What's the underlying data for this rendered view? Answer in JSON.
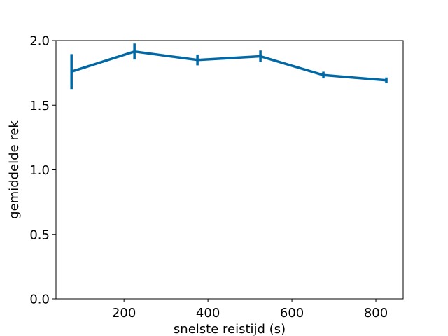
{
  "chart_data": {
    "type": "line",
    "title": "",
    "xlabel": "snelste reistijd (s)",
    "ylabel": "gemiddelde rek",
    "xlim": [
      38,
      865
    ],
    "ylim": [
      0.0,
      2.0
    ],
    "xticks": [
      200,
      400,
      600,
      800
    ],
    "yticks": [
      0.0,
      0.5,
      1.0,
      1.5,
      2.0
    ],
    "xtick_labels": [
      "200",
      "400",
      "600",
      "800"
    ],
    "ytick_labels": [
      "0.0",
      "0.5",
      "1.0",
      "1.5",
      "2.0"
    ],
    "grid": false,
    "legend": "none",
    "color": "#0068a4",
    "series": [
      {
        "x": [
          75,
          225,
          375,
          525,
          675,
          825
        ],
        "y": [
          1.76,
          1.915,
          1.85,
          1.878,
          1.733,
          1.692
        ],
        "yerr": [
          0.135,
          0.062,
          0.042,
          0.045,
          0.026,
          0.022
        ]
      }
    ]
  }
}
